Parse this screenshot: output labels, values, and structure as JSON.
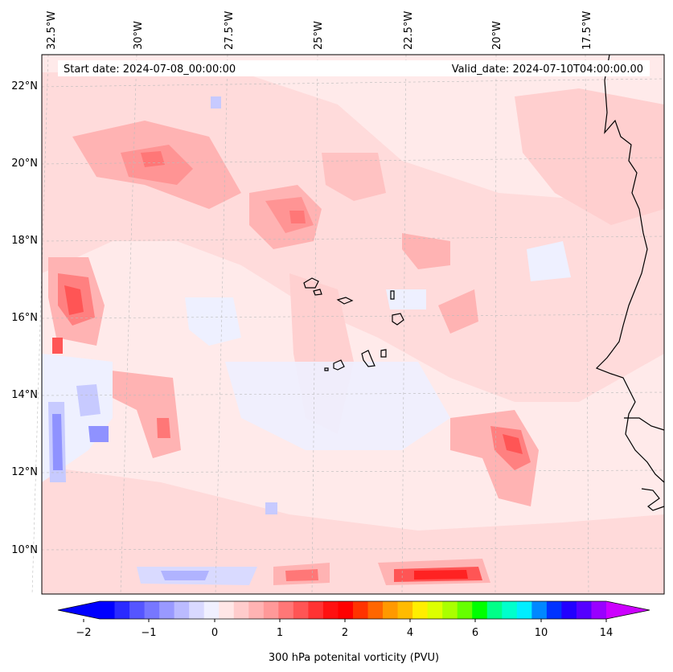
{
  "map": {
    "start_date_text": "Start date: 2024-07-08_00:00:00",
    "valid_date_text": "Valid_date: 2024-07-10T04:00:00.00",
    "lon_labels": [
      "32.5°W",
      "30°W",
      "27.5°W",
      "25°W",
      "22.5°W",
      "20°W",
      "17.5°W"
    ],
    "lat_labels": [
      "22°N",
      "20°N",
      "18°N",
      "16°N",
      "14°N",
      "12°N",
      "10°N"
    ],
    "colorbar": {
      "label": "300 hPa potenital vorticity (PVU)",
      "tick_labels": [
        "−2",
        "−1",
        "0",
        "1",
        "2",
        "4",
        "6",
        "10",
        "14"
      ],
      "colors": [
        "#0000ff",
        "#2a2aff",
        "#5555ff",
        "#7777ff",
        "#9999ff",
        "#bbbbff",
        "#d9d9ff",
        "#f0f0ff",
        "#ffe6e6",
        "#ffcccc",
        "#ffb3b3",
        "#ff9999",
        "#ff7777",
        "#ff5555",
        "#ff3333",
        "#ff1111",
        "#ff0000",
        "#ff3300",
        "#ff6600",
        "#ff9900",
        "#ffbb00",
        "#ffee00",
        "#ddff00",
        "#aaff00",
        "#66ff00",
        "#00ff00",
        "#00ff88",
        "#00ffcc",
        "#00eeff",
        "#0088ff",
        "#0033ff",
        "#2200ff",
        "#5500ff",
        "#9900ff"
      ],
      "under_color": "#0000ff",
      "over_color": "#cc00ff"
    },
    "field_colors": {
      "background": "#ffeaea",
      "light_pink": "#ffd0d0",
      "mid_pink": "#ffb3b3",
      "strong_pink": "#ff9494",
      "red": "#ff5555",
      "deep_red": "#ff2222",
      "light_blue": "#eef0ff",
      "mid_blue": "#c7caff",
      "strong_blue": "#8f92ff"
    }
  }
}
